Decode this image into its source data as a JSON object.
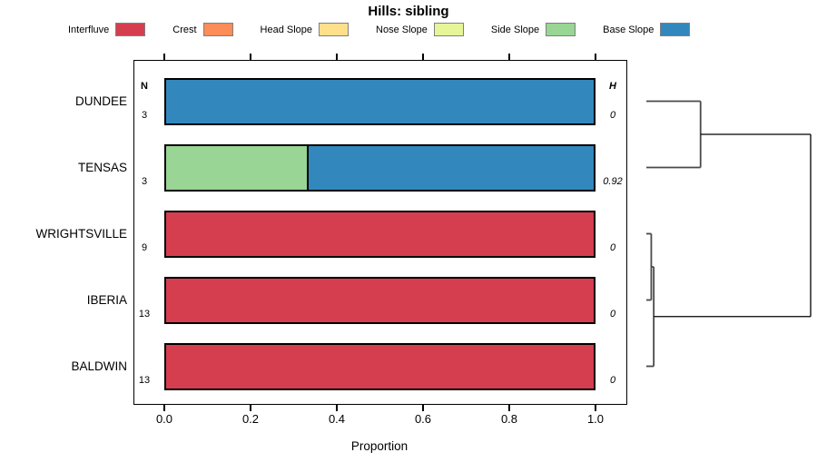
{
  "title": "Hills: sibling",
  "headers": {
    "n": "N",
    "h": "H"
  },
  "legend": {
    "swatch_border_color": "#808080",
    "items": [
      {
        "label": "Interfluve",
        "color": "#D53E4F"
      },
      {
        "label": "Crest",
        "color": "#FC8D59"
      },
      {
        "label": "Head Slope",
        "color": "#FEE08B"
      },
      {
        "label": "Nose Slope",
        "color": "#E6F598"
      },
      {
        "label": "Side Slope",
        "color": "#99D594"
      },
      {
        "label": "Base Slope",
        "color": "#3288BD"
      }
    ]
  },
  "chart_data": {
    "type": "bar",
    "subtype": "horizontal-stacked-proportion",
    "title": "Hills: sibling",
    "xlabel": "Proportion",
    "xlim": [
      0,
      1
    ],
    "xticks": [
      0,
      0.2,
      0.4,
      0.6,
      0.8,
      1
    ],
    "xtick_labels": [
      "0.0",
      "0.2",
      "0.4",
      "0.6",
      "0.8",
      "1.0"
    ],
    "grid": false,
    "legend_position": "top",
    "categories": [
      "DUNDEE",
      "TENSAS",
      "WRIGHTSVILLE",
      "IBERIA",
      "BALDWIN"
    ],
    "series": [
      "Interfluve",
      "Crest",
      "Head Slope",
      "Nose Slope",
      "Side Slope",
      "Base Slope"
    ],
    "rows": [
      {
        "label": "DUNDEE",
        "n": "3",
        "h": "0",
        "segments": [
          {
            "series": "Base Slope",
            "value": 1.0
          }
        ]
      },
      {
        "label": "TENSAS",
        "n": "3",
        "h": "0.92",
        "segments": [
          {
            "series": "Side Slope",
            "value": 0.333
          },
          {
            "series": "Base Slope",
            "value": 0.667
          }
        ]
      },
      {
        "label": "WRIGHTSVILLE",
        "n": "9",
        "h": "0",
        "segments": [
          {
            "series": "Interfluve",
            "value": 1.0
          }
        ]
      },
      {
        "label": "IBERIA",
        "n": "13",
        "h": "0",
        "segments": [
          {
            "series": "Interfluve",
            "value": 1.0
          }
        ]
      },
      {
        "label": "BALDWIN",
        "n": "13",
        "h": "0",
        "segments": [
          {
            "series": "Interfluve",
            "value": 1.0
          }
        ]
      }
    ],
    "dendrogram": {
      "orientation": "right",
      "merges": [
        {
          "a": [
            "DUNDEE"
          ],
          "b": [
            "TENSAS"
          ],
          "height": 0.33
        },
        {
          "a": [
            "WRIGHTSVILLE"
          ],
          "b": [
            "IBERIA"
          ],
          "height": 0.03
        },
        {
          "a": [
            "WRIGHTSVILLE",
            "IBERIA"
          ],
          "b": [
            "BALDWIN"
          ],
          "height": 0.045
        },
        {
          "a": [
            "DUNDEE",
            "TENSAS"
          ],
          "b": [
            "WRIGHTSVILLE",
            "IBERIA",
            "BALDWIN"
          ],
          "height": 1.0
        }
      ]
    }
  }
}
